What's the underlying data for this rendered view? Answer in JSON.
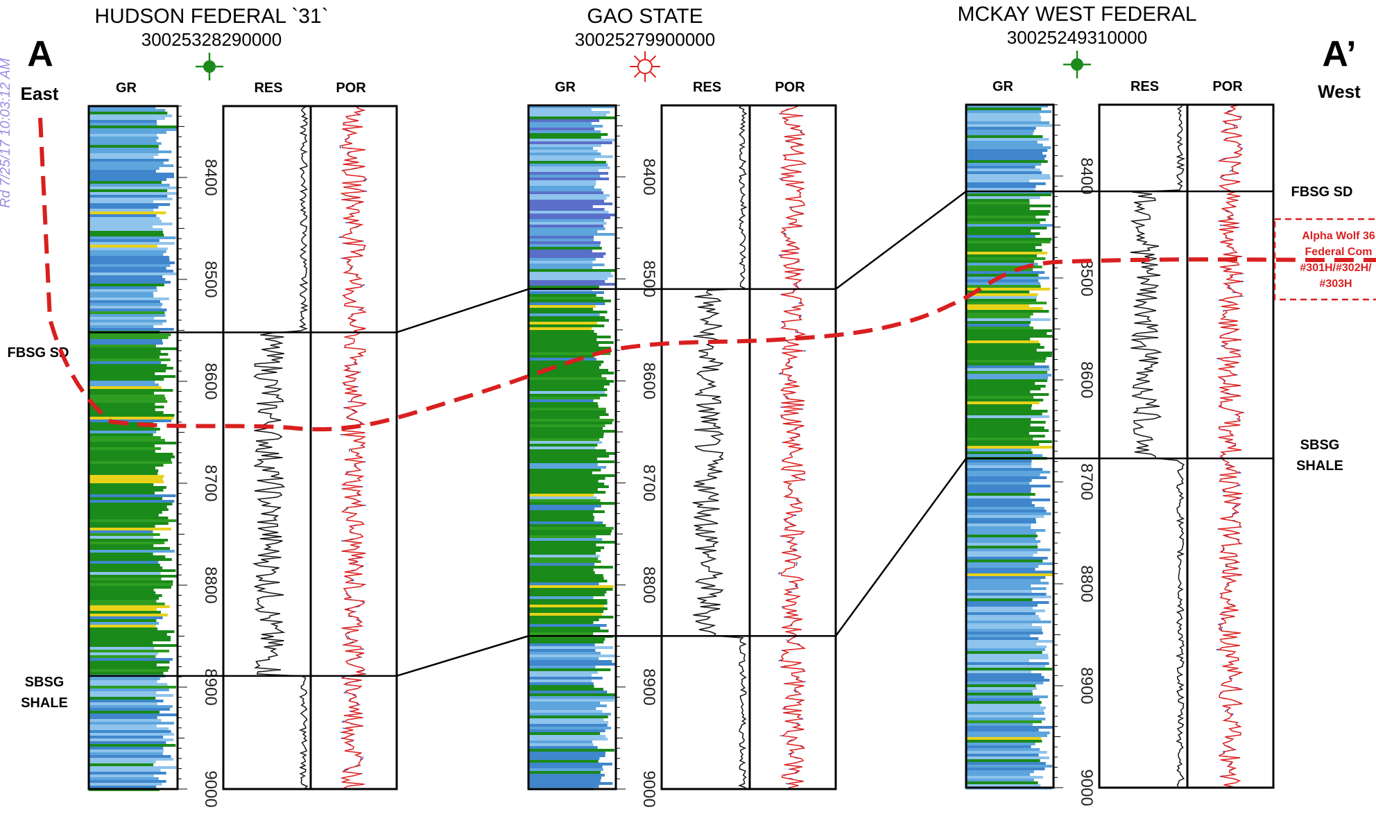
{
  "endpoints": {
    "left_letter": "A",
    "left_dir": "East",
    "right_letter": "A’",
    "right_dir": "West"
  },
  "side_stamp": "Rd 7/25/17 10:03:12 AM",
  "log_headers": {
    "gr": "GR",
    "res": "RES",
    "por": "POR"
  },
  "wells": [
    {
      "name": "HUDSON FEDERAL `31`",
      "api": "30025328290000",
      "symbol": "oil-well-symbol",
      "depth_top": 8330,
      "depth_bottom": 9000,
      "ticks": [
        "8400",
        "8500",
        "8600",
        "8700",
        "8800",
        "8900",
        "9000"
      ],
      "fbsg_depth": 8552,
      "sbsg_depth": 8889
    },
    {
      "name": "GAO STATE",
      "api": "30025279900000",
      "symbol": "gas-well-symbol",
      "depth_top": 8330,
      "depth_bottom": 9000,
      "ticks": [
        "8400",
        "8500",
        "8600",
        "8700",
        "8800",
        "8900",
        "9000"
      ],
      "fbsg_depth": 8510,
      "sbsg_depth": 8850
    },
    {
      "name": "MCKAY WEST FEDERAL",
      "api": "30025249310000",
      "symbol": "oil-well-symbol",
      "depth_top": 8330,
      "depth_bottom": 9000,
      "ticks": [
        "8400",
        "8500",
        "8600",
        "8700",
        "8800",
        "8900",
        "9000"
      ],
      "fbsg_depth": 8415,
      "sbsg_depth": 8677
    }
  ],
  "formations": {
    "fbsg": "FBSG SD",
    "sbsg_line1": "SBSG",
    "sbsg_line2": "SHALE"
  },
  "target": {
    "line1": "Alpha Wolf 36",
    "line2": "Federal Com",
    "line3": "#301H/#302H/",
    "line4": "#303H"
  },
  "colors": {
    "sand": "#1a8a1a",
    "shale": "#5da5dc",
    "target": "#d91f1f",
    "por": "#e0201c",
    "por2": "#1a3fc0"
  }
}
